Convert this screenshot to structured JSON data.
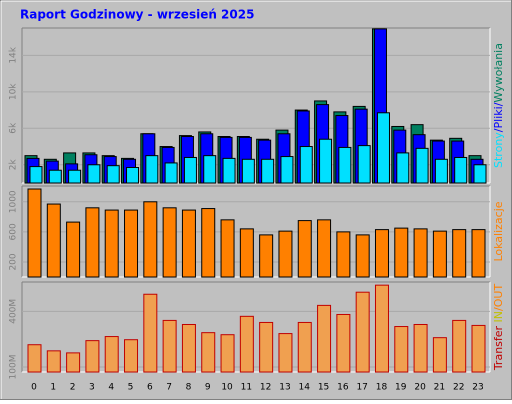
{
  "chart_data": [
    {
      "type": "bar",
      "title": "Raport Godzinowy -  wrzesień 2025",
      "ylim": [
        0,
        17000
      ],
      "yticks": [
        {
          "value": 2000,
          "label": "2k"
        },
        {
          "value": 6000,
          "label": "6k"
        },
        {
          "value": 10000,
          "label": "10k"
        },
        {
          "value": 14000,
          "label": "14k"
        }
      ],
      "grid": true,
      "series": [
        {
          "name": "Wywołania",
          "color": "#008060",
          "values": [
            3000,
            2600,
            3300,
            3300,
            3000,
            2700,
            5400,
            4000,
            5200,
            5600,
            5100,
            5100,
            4800,
            5800,
            8000,
            9000,
            7800,
            8400,
            16900,
            6200,
            6400,
            4700,
            4900,
            3000
          ]
        },
        {
          "name": "Pliki",
          "color": "#0000ff",
          "values": [
            2700,
            2400,
            2100,
            3100,
            2900,
            2600,
            5400,
            3900,
            5100,
            5400,
            5000,
            5000,
            4700,
            5400,
            7900,
            8600,
            7400,
            8100,
            16900,
            5800,
            5300,
            4600,
            4600,
            2600
          ]
        },
        {
          "name": "Strony",
          "color": "#00e0ff",
          "values": [
            1800,
            1400,
            1400,
            2000,
            1900,
            1700,
            3000,
            2200,
            2800,
            3000,
            2700,
            2600,
            2600,
            2900,
            4000,
            4800,
            3900,
            4100,
            7700,
            3300,
            3800,
            2600,
            2800,
            2000
          ]
        }
      ]
    },
    {
      "type": "bar",
      "ylim": [
        0,
        1210
      ],
      "yticks": [
        200,
        600,
        1000
      ],
      "grid": true,
      "series": [
        {
          "name": "Lokalizacje",
          "color": "#ff8000",
          "values": [
            1170,
            970,
            730,
            920,
            890,
            890,
            1000,
            920,
            890,
            910,
            760,
            640,
            560,
            610,
            750,
            760,
            600,
            560,
            630,
            650,
            640,
            610,
            630,
            630
          ]
        }
      ]
    },
    {
      "type": "bar",
      "ylim": [
        73,
        558
      ],
      "yticks": [
        {
          "value": 100,
          "label": "100M"
        },
        {
          "value": 400,
          "label": "400M"
        }
      ],
      "grid": true,
      "legend": [
        {
          "text": "Transfer",
          "color": "#c00000"
        },
        {
          "text": " IN",
          "color": "#c0c000"
        },
        {
          "text": "/OUT",
          "color": "#ff8000"
        }
      ],
      "series": [
        {
          "name": "Transfer",
          "color": "#f0a050",
          "values": [
            220,
            187,
            176,
            242,
            264,
            247,
            492,
            351,
            329,
            285,
            274,
            373,
            340,
            280,
            340,
            432,
            383,
            503,
            541,
            318,
            329,
            258,
            351,
            324
          ]
        }
      ],
      "categories": [
        "0",
        "1",
        "2",
        "3",
        "4",
        "5",
        "6",
        "7",
        "8",
        "9",
        "10",
        "11",
        "12",
        "13",
        "14",
        "15",
        "16",
        "17",
        "18",
        "19",
        "20",
        "21",
        "22",
        "23"
      ]
    }
  ]
}
